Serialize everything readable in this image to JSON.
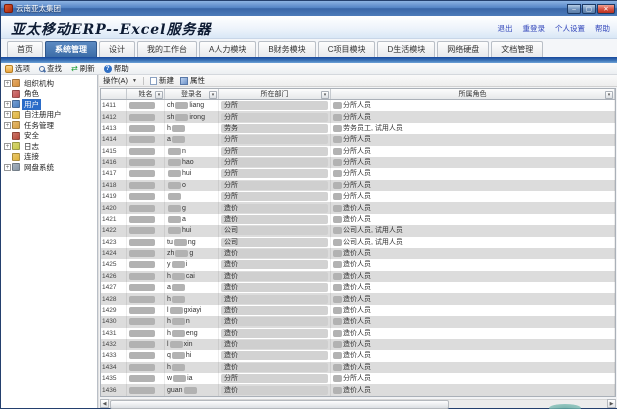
{
  "window": {
    "title": "云南亚太集团",
    "controls": {
      "minimize": "–",
      "maximize": "▢",
      "close": "✕"
    }
  },
  "header": {
    "app_title": "亚太移动ERP--Excel服务器",
    "links": [
      {
        "name": "link-logout",
        "label": "退出"
      },
      {
        "name": "link-relogin",
        "label": "重登录"
      },
      {
        "name": "link-personal-settings",
        "label": "个人设置"
      },
      {
        "name": "link-help",
        "label": "帮助"
      }
    ]
  },
  "tabs": [
    {
      "name": "tab-home",
      "label": "首页",
      "active": false
    },
    {
      "name": "tab-system-mgmt",
      "label": "系统管理",
      "active": true
    },
    {
      "name": "tab-design",
      "label": "设计",
      "active": false
    },
    {
      "name": "tab-workbench",
      "label": "我的工作台",
      "active": false
    },
    {
      "name": "tab-hr-module",
      "label": "A人力模块",
      "active": false
    },
    {
      "name": "tab-finance-module",
      "label": "B财务模块",
      "active": false
    },
    {
      "name": "tab-project-module",
      "label": "C项目模块",
      "active": false
    },
    {
      "name": "tab-life-module",
      "label": "D生活模块",
      "active": false
    },
    {
      "name": "tab-network-disk",
      "label": "网络硬盘",
      "active": false
    },
    {
      "name": "tab-doc-mgmt",
      "label": "文档管理",
      "active": false
    }
  ],
  "toolbar": [
    {
      "name": "toolbar-options",
      "label": "选项",
      "icon": "options-icon"
    },
    {
      "name": "toolbar-find",
      "label": "查找",
      "icon": "search-icon"
    },
    {
      "name": "toolbar-refresh",
      "label": "刷新",
      "icon": "refresh-icon"
    },
    {
      "name": "toolbar-help",
      "label": "帮助",
      "icon": "help-icon"
    }
  ],
  "tree": [
    {
      "name": "tree-item-organization",
      "label": "组织机构",
      "expander": true,
      "selected": false,
      "icon_color": "#d88f3a"
    },
    {
      "name": "tree-item-role",
      "label": "角色",
      "expander": false,
      "selected": false,
      "icon_color": "#c05050"
    },
    {
      "name": "tree-item-users",
      "label": "用户",
      "expander": true,
      "selected": true,
      "icon_color": "#4a7ec0"
    },
    {
      "name": "tree-item-self-registered",
      "label": "自注册用户",
      "expander": true,
      "selected": false,
      "icon_color": "#e0b43c"
    },
    {
      "name": "tree-item-task-mgmt",
      "label": "任务管理",
      "expander": true,
      "selected": false,
      "icon_color": "#d8a040"
    },
    {
      "name": "tree-item-security",
      "label": "安全",
      "expander": false,
      "selected": false,
      "icon_color": "#b84a3a"
    },
    {
      "name": "tree-item-logs",
      "label": "日志",
      "expander": true,
      "selected": false,
      "icon_color": "#c8c848"
    },
    {
      "name": "tree-item-connections",
      "label": "连接",
      "expander": false,
      "selected": false,
      "icon_color": "#e0b43c"
    },
    {
      "name": "tree-item-netdisk",
      "label": "网盘系统",
      "expander": true,
      "selected": false,
      "icon_color": "#8898a8"
    }
  ],
  "panel_toolbar": {
    "operation_label": "操作(A)",
    "new_label": "新建",
    "properties_label": "属性"
  },
  "table": {
    "columns": {
      "id": "",
      "name": "姓名",
      "login": "登录名",
      "dept": "所在部门",
      "role": "所属角色"
    },
    "rows": [
      {
        "id": "1411",
        "login_pre": "ch",
        "login_post": "liang",
        "dept": "分所",
        "role": "分所人员"
      },
      {
        "id": "1412",
        "login_pre": "sh",
        "login_post": "irong",
        "dept": "分所",
        "role": "分所人员"
      },
      {
        "id": "1413",
        "login_pre": "h",
        "login_post": "",
        "dept": "劳务",
        "role": "劳务员工, 试用人员"
      },
      {
        "id": "1414",
        "login_pre": "a",
        "login_post": "",
        "dept": "分所",
        "role": "分所人员"
      },
      {
        "id": "1415",
        "login_pre": "",
        "login_post": "n",
        "dept": "分所",
        "role": "分所人员"
      },
      {
        "id": "1416",
        "login_pre": "",
        "login_post": "hao",
        "dept": "分所",
        "role": "分所人员"
      },
      {
        "id": "1417",
        "login_pre": "",
        "login_post": "hui",
        "dept": "分所",
        "role": "分所人员"
      },
      {
        "id": "1418",
        "login_pre": "",
        "login_post": "o",
        "dept": "分所",
        "role": "分所人员"
      },
      {
        "id": "1419",
        "login_pre": "",
        "login_post": "",
        "dept": "分所",
        "role": "分所人员"
      },
      {
        "id": "1420",
        "login_pre": "",
        "login_post": "g",
        "dept": "造价",
        "role": "造价人员"
      },
      {
        "id": "1421",
        "login_pre": "",
        "login_post": "a",
        "dept": "造价",
        "role": "造价人员"
      },
      {
        "id": "1422",
        "login_pre": "",
        "login_post": "hui",
        "dept": "公司",
        "role": "公司人员, 试用人员"
      },
      {
        "id": "1423",
        "login_pre": "tu",
        "login_post": "ng",
        "dept": "公司",
        "role": "公司人员, 试用人员"
      },
      {
        "id": "1424",
        "login_pre": "zh",
        "login_post": "g",
        "dept": "造价",
        "role": "造价人员"
      },
      {
        "id": "1425",
        "login_pre": "y",
        "login_post": "i",
        "dept": "造价",
        "role": "造价人员"
      },
      {
        "id": "1426",
        "login_pre": "h",
        "login_post": "cai",
        "dept": "造价",
        "role": "造价人员"
      },
      {
        "id": "1427",
        "login_pre": "a",
        "login_post": "",
        "dept": "造价",
        "role": "造价人员"
      },
      {
        "id": "1428",
        "login_pre": "h",
        "login_post": "",
        "dept": "造价",
        "role": "造价人员"
      },
      {
        "id": "1429",
        "login_pre": "l",
        "login_post": "gxiayi",
        "dept": "造价",
        "role": "造价人员"
      },
      {
        "id": "1430",
        "login_pre": "h",
        "login_post": "n",
        "dept": "造价",
        "role": "造价人员"
      },
      {
        "id": "1431",
        "login_pre": "h",
        "login_post": "eng",
        "dept": "造价",
        "role": "造价人员"
      },
      {
        "id": "1432",
        "login_pre": "l",
        "login_post": "xin",
        "dept": "造价",
        "role": "造价人员"
      },
      {
        "id": "1433",
        "login_pre": "q",
        "login_post": "hi",
        "dept": "造价",
        "role": "造价人员"
      },
      {
        "id": "1434",
        "login_pre": "h",
        "login_post": "",
        "dept": "造价",
        "role": "造价人员"
      },
      {
        "id": "1435",
        "login_pre": "w",
        "login_post": "ia",
        "dept": "分所",
        "role": "分所人员"
      },
      {
        "id": "1436",
        "login_pre": "guan",
        "login_post": "",
        "dept": "造价",
        "role": "造价人员"
      }
    ]
  },
  "colors": {
    "titlebar_blue": "#4d7cba",
    "active_tab_blue": "#3d6da8",
    "band_blue": "#16489c",
    "selection_blue": "#2b6cc8",
    "row_alt_gray": "#dcdcdc",
    "redaction_gray": "#b2b2b2"
  }
}
